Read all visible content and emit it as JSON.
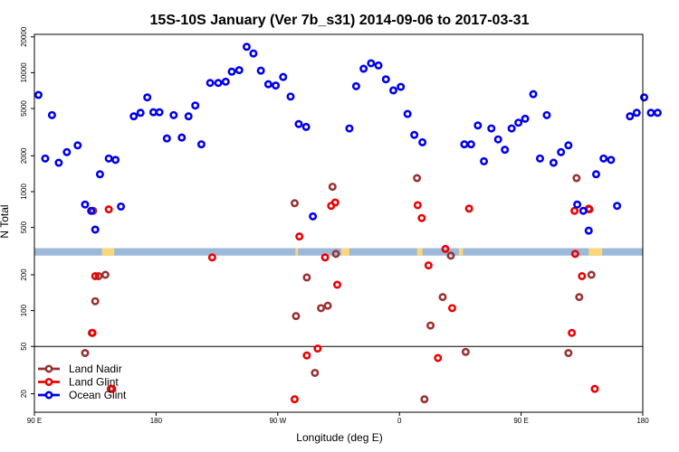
{
  "chart_data": {
    "type": "scatter",
    "title": "15S-10S January (Ver 7b_s31)   2014-09-06 to 2017-03-31",
    "xlabel": "Longitude (deg E)",
    "ylabel": "N Total",
    "x_scale": "linear",
    "y_scale": "log",
    "xlim": [
      90,
      540
    ],
    "ylim": [
      14,
      21000
    ],
    "x_ticks": [
      {
        "value": 90,
        "label": "90 E"
      },
      {
        "value": 180,
        "label": "180"
      },
      {
        "value": 270,
        "label": "90 W"
      },
      {
        "value": 360,
        "label": "0"
      },
      {
        "value": 450,
        "label": "90 E"
      },
      {
        "value": 540,
        "label": "180"
      }
    ],
    "y_ticks": [
      {
        "value": 20,
        "label": "20"
      },
      {
        "value": 50,
        "label": "50"
      },
      {
        "value": 100,
        "label": "100"
      },
      {
        "value": 200,
        "label": "200"
      },
      {
        "value": 500,
        "label": "500"
      },
      {
        "value": 1000,
        "label": "1000"
      },
      {
        "value": 2000,
        "label": "2000"
      },
      {
        "value": 5000,
        "label": "5000"
      },
      {
        "value": 10000,
        "label": "10000"
      },
      {
        "value": 20000,
        "label": "20000"
      }
    ],
    "reference_line": {
      "y": 50,
      "color": "#000000"
    },
    "land_band": {
      "y_range": [
        290,
        335
      ],
      "ocean_color": "#9db9d9",
      "land_color": "#f8d878",
      "land_segments": [
        [
          140,
          149
        ],
        [
          283,
          285
        ],
        [
          317,
          323
        ],
        [
          373,
          377
        ],
        [
          404,
          407
        ],
        [
          500,
          510
        ]
      ]
    },
    "legend_position": "bottom-left",
    "series": [
      {
        "name": "Land Nadir",
        "color": "#993333",
        "points": [
          [
            127.5,
            44
          ],
          [
            132.5,
            65
          ],
          [
            133.5,
            690
          ],
          [
            135,
            120
          ],
          [
            137.5,
            195
          ],
          [
            142.5,
            200
          ],
          [
            146.5,
            22
          ],
          [
            282.5,
            800
          ],
          [
            283.5,
            90
          ],
          [
            291.5,
            190
          ],
          [
            297.5,
            30
          ],
          [
            302,
            105
          ],
          [
            307,
            110
          ],
          [
            310.5,
            1100
          ],
          [
            313,
            300
          ],
          [
            373,
            1300
          ],
          [
            378.5,
            18
          ],
          [
            383,
            75
          ],
          [
            392,
            130
          ],
          [
            398,
            290
          ],
          [
            409,
            45
          ],
          [
            485,
            44
          ],
          [
            491,
            1300
          ],
          [
            493,
            130
          ],
          [
            500,
            720
          ],
          [
            502,
            200
          ]
        ]
      },
      {
        "name": "Land Glint",
        "color": "#ee0000",
        "points": [
          [
            133,
            65
          ],
          [
            135,
            195
          ],
          [
            145,
            710
          ],
          [
            147.5,
            22
          ],
          [
            221.5,
            280
          ],
          [
            282.5,
            18
          ],
          [
            286,
            420
          ],
          [
            291.5,
            42
          ],
          [
            299.5,
            48
          ],
          [
            305,
            280
          ],
          [
            309.5,
            760
          ],
          [
            312.5,
            810
          ],
          [
            314,
            165
          ],
          [
            373.5,
            770
          ],
          [
            376.5,
            600
          ],
          [
            381.5,
            240
          ],
          [
            388.5,
            40
          ],
          [
            394,
            330
          ],
          [
            399,
            105
          ],
          [
            411.5,
            720
          ],
          [
            487.5,
            65
          ],
          [
            489.5,
            690
          ],
          [
            490,
            300
          ],
          [
            495,
            195
          ],
          [
            500.5,
            710
          ],
          [
            504.5,
            22
          ]
        ]
      },
      {
        "name": "Ocean Glint",
        "color": "#0000ee",
        "points": [
          [
            93,
            6500
          ],
          [
            98,
            1900
          ],
          [
            103,
            4400
          ],
          [
            108,
            1750
          ],
          [
            114,
            2150
          ],
          [
            122,
            2450
          ],
          [
            127.5,
            780
          ],
          [
            132,
            690
          ],
          [
            135,
            480
          ],
          [
            138.5,
            1400
          ],
          [
            145,
            1900
          ],
          [
            150,
            1850
          ],
          [
            154,
            750
          ],
          [
            163.5,
            4300
          ],
          [
            168.5,
            4600
          ],
          [
            173.5,
            6200
          ],
          [
            178,
            4650
          ],
          [
            182.5,
            4650
          ],
          [
            188,
            2800
          ],
          [
            193,
            4400
          ],
          [
            199,
            2850
          ],
          [
            204,
            4300
          ],
          [
            209,
            5300
          ],
          [
            213.5,
            2500
          ],
          [
            220,
            8200
          ],
          [
            226,
            8200
          ],
          [
            231.5,
            8400
          ],
          [
            236,
            10200
          ],
          [
            241.5,
            10500
          ],
          [
            247,
            16500
          ],
          [
            252,
            14500
          ],
          [
            257.5,
            10400
          ],
          [
            263,
            8000
          ],
          [
            268.5,
            7800
          ],
          [
            274,
            9200
          ],
          [
            279.5,
            6300
          ],
          [
            285.5,
            3700
          ],
          [
            291,
            3500
          ],
          [
            296,
            620
          ],
          [
            323,
            3400
          ],
          [
            328,
            7700
          ],
          [
            333.5,
            10800
          ],
          [
            339,
            12000
          ],
          [
            344.5,
            11500
          ],
          [
            350,
            8800
          ],
          [
            355.5,
            7100
          ],
          [
            361,
            7600
          ],
          [
            366,
            4500
          ],
          [
            371,
            3000
          ],
          [
            377,
            2600
          ],
          [
            408,
            2500
          ],
          [
            413,
            2500
          ],
          [
            418,
            3600
          ],
          [
            422.5,
            1800
          ],
          [
            428,
            3400
          ],
          [
            433,
            2750
          ],
          [
            438,
            2250
          ],
          [
            443,
            3400
          ],
          [
            448,
            3800
          ],
          [
            453,
            4100
          ],
          [
            459,
            6600
          ],
          [
            464,
            1900
          ],
          [
            469,
            4400
          ],
          [
            474,
            1750
          ],
          [
            479.5,
            2150
          ],
          [
            485,
            2450
          ],
          [
            491.5,
            780
          ],
          [
            496,
            690
          ],
          [
            500,
            470
          ],
          [
            505.5,
            1400
          ],
          [
            511,
            1900
          ],
          [
            516.5,
            1850
          ],
          [
            521,
            760
          ],
          [
            530.5,
            4300
          ],
          [
            535.5,
            4600
          ],
          [
            541,
            6200
          ],
          [
            546,
            4600
          ],
          [
            551,
            4600
          ]
        ]
      }
    ]
  }
}
